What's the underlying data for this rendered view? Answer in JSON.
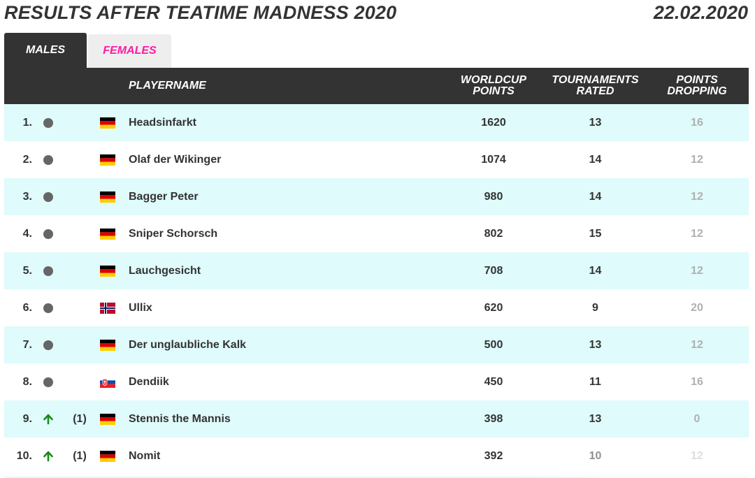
{
  "page": {
    "title": "RESULTS AFTER TEATIME MADNESS 2020",
    "date": "22.02.2020"
  },
  "tabs": [
    {
      "label": "MALES",
      "active": true
    },
    {
      "label": "FEMALES",
      "active": false
    }
  ],
  "table": {
    "headers": {
      "playername": "PLAYERNAME",
      "worldcup_points_line1": "WORLDCUP",
      "worldcup_points_line2": "POINTS",
      "tournaments_rated_line1": "TOURNAMENTS",
      "tournaments_rated_line2": "RATED",
      "points_dropping_line1": "POINTS",
      "points_dropping_line2": "DROPPING"
    },
    "rows": [
      {
        "rank": "1.",
        "trend": "steady",
        "change": "",
        "flag": "germany",
        "name": "Headsinfarkt",
        "worldcup_points": "1620",
        "tournaments_rated": "13",
        "points_dropping": "16"
      },
      {
        "rank": "2.",
        "trend": "steady",
        "change": "",
        "flag": "germany",
        "name": "Olaf der Wikinger",
        "worldcup_points": "1074",
        "tournaments_rated": "14",
        "points_dropping": "12"
      },
      {
        "rank": "3.",
        "trend": "steady",
        "change": "",
        "flag": "germany",
        "name": "Bagger Peter",
        "worldcup_points": "980",
        "tournaments_rated": "14",
        "points_dropping": "12"
      },
      {
        "rank": "4.",
        "trend": "steady",
        "change": "",
        "flag": "germany",
        "name": "Sniper Schorsch",
        "worldcup_points": "802",
        "tournaments_rated": "15",
        "points_dropping": "12"
      },
      {
        "rank": "5.",
        "trend": "steady",
        "change": "",
        "flag": "germany",
        "name": "Lauchgesicht",
        "worldcup_points": "708",
        "tournaments_rated": "14",
        "points_dropping": "12"
      },
      {
        "rank": "6.",
        "trend": "steady",
        "change": "",
        "flag": "norway",
        "name": "Ullix",
        "worldcup_points": "620",
        "tournaments_rated": "9",
        "points_dropping": "20"
      },
      {
        "rank": "7.",
        "trend": "steady",
        "change": "",
        "flag": "germany",
        "name": "Der unglaubliche Kalk",
        "worldcup_points": "500",
        "tournaments_rated": "13",
        "points_dropping": "12"
      },
      {
        "rank": "8.",
        "trend": "steady",
        "change": "",
        "flag": "slovakia",
        "name": "Dendiik",
        "worldcup_points": "450",
        "tournaments_rated": "11",
        "points_dropping": "16"
      },
      {
        "rank": "9.",
        "trend": "up",
        "change": "(1)",
        "flag": "germany",
        "name": "Stennis the Mannis",
        "worldcup_points": "398",
        "tournaments_rated": "13",
        "points_dropping": "0"
      },
      {
        "rank": "10.",
        "trend": "up",
        "change": "(1)",
        "flag": "germany",
        "name": "Nomit",
        "worldcup_points": "392",
        "tournaments_rated": "10",
        "points_dropping": "12"
      }
    ]
  },
  "colors": {
    "header_bg": "#333333",
    "row_alt_bg": "#dffbfb",
    "females_tab": "#ff1aa3",
    "steady_dot": "#666666",
    "up_arrow": "#1a8a1a",
    "points_dropping_text": "#b0b0b0"
  }
}
